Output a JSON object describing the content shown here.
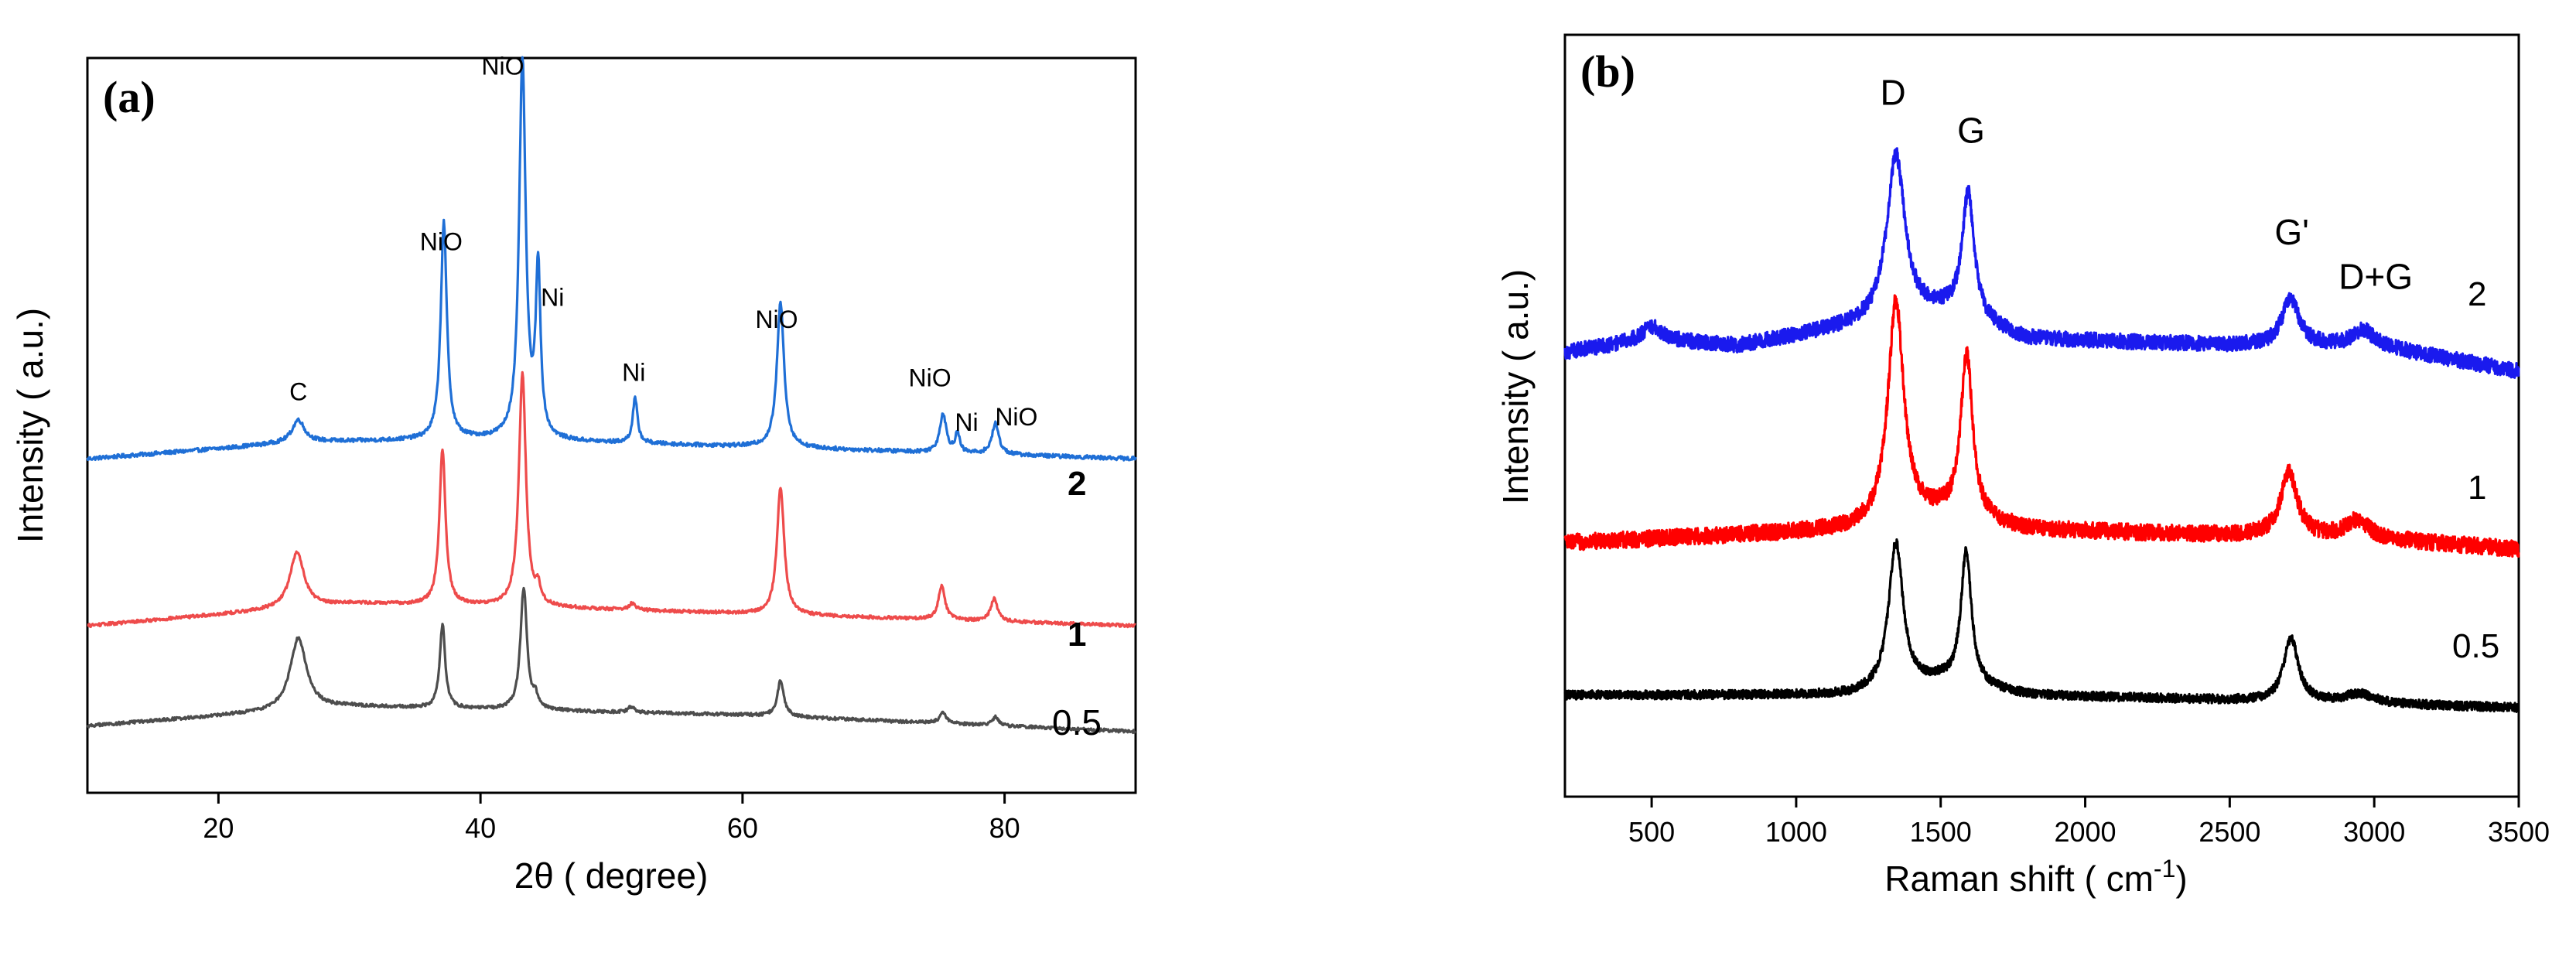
{
  "chart_data": [
    {
      "panel": "(a)",
      "type": "line",
      "xlabel": "2θ ( degree)",
      "ylabel": "Intensity ( a.u.)",
      "xlim": [
        10,
        90
      ],
      "xticks": [
        "20",
        "40",
        "60",
        "80"
      ],
      "xtick_values": [
        20,
        40,
        60,
        80
      ],
      "y_ticks_shown": false,
      "series": [
        {
          "name": "2",
          "label_bold": true,
          "color": "#1f6fd6",
          "offset": 0.6,
          "noise": 0.0035,
          "baseline": [
            [
              10,
              0.0
            ],
            [
              20,
              0.018
            ],
            [
              26,
              0.03
            ],
            [
              40,
              0.035
            ],
            [
              60,
              0.022
            ],
            [
              90,
              0.0
            ]
          ],
          "peaks": [
            [
              26.1,
              0.04,
              0.55
            ],
            [
              37.2,
              0.39,
              0.28
            ],
            [
              43.2,
              0.68,
              0.3
            ],
            [
              44.4,
              0.3,
              0.22
            ],
            [
              51.8,
              0.08,
              0.22
            ],
            [
              62.9,
              0.26,
              0.33
            ],
            [
              75.3,
              0.07,
              0.3
            ],
            [
              76.4,
              0.035,
              0.2
            ],
            [
              79.3,
              0.055,
              0.32
            ]
          ]
        },
        {
          "name": "1",
          "label_bold": true,
          "color": "#ee4b4b",
          "offset": 0.3,
          "noise": 0.0028,
          "baseline": [
            [
              10,
              0.0
            ],
            [
              20,
              0.02
            ],
            [
              30,
              0.04
            ],
            [
              40,
              0.036
            ],
            [
              60,
              0.022
            ],
            [
              90,
              0.0
            ]
          ],
          "peaks": [
            [
              26.0,
              0.1,
              0.65
            ],
            [
              37.1,
              0.28,
              0.28
            ],
            [
              43.2,
              0.42,
              0.32
            ],
            [
              44.4,
              0.03,
              0.2
            ],
            [
              51.6,
              0.012,
              0.3
            ],
            [
              62.9,
              0.23,
              0.33
            ],
            [
              75.2,
              0.06,
              0.3
            ],
            [
              79.2,
              0.04,
              0.32
            ]
          ]
        },
        {
          "name": "0.5",
          "label_bold": false,
          "color": "#4d4d4d",
          "offset": 0.12,
          "noise": 0.0028,
          "baseline": [
            [
              10,
              0.0
            ],
            [
              20,
              0.018
            ],
            [
              30,
              0.035
            ],
            [
              40,
              0.03
            ],
            [
              60,
              0.02
            ],
            [
              90,
              -0.01
            ]
          ],
          "peaks": [
            [
              26.1,
              0.13,
              0.75
            ],
            [
              37.1,
              0.15,
              0.25
            ],
            [
              43.3,
              0.22,
              0.3
            ],
            [
              44.2,
              0.02,
              0.2
            ],
            [
              51.5,
              0.01,
              0.3
            ],
            [
              62.9,
              0.065,
              0.3
            ],
            [
              75.3,
              0.02,
              0.3
            ],
            [
              79.3,
              0.015,
              0.3
            ]
          ]
        }
      ],
      "annotations": [
        {
          "text": "C",
          "x": 26.1,
          "y": 0.705
        },
        {
          "text": "NiO",
          "x": 37.0,
          "y": 0.975
        },
        {
          "text": "NiO",
          "x": 41.7,
          "y": 1.29
        },
        {
          "text": "Ni",
          "x": 45.5,
          "y": 0.875
        },
        {
          "text": "Ni",
          "x": 51.7,
          "y": 0.74
        },
        {
          "text": "NiO",
          "x": 62.6,
          "y": 0.835
        },
        {
          "text": "NiO",
          "x": 74.3,
          "y": 0.73
        },
        {
          "text": "Ni",
          "x": 77.1,
          "y": 0.65
        },
        {
          "text": "NiO",
          "x": 80.9,
          "y": 0.66
        }
      ]
    },
    {
      "panel": "(b)",
      "type": "line",
      "xlabel": "Raman shift ( cm",
      "xlabel_sup": "-1",
      "xlabel_close": ")",
      "ylabel": "Intensity ( a.u.)",
      "xlim": [
        200,
        3500
      ],
      "xticks": [
        "500",
        "1000",
        "1500",
        "2000",
        "2500",
        "3000",
        "3500"
      ],
      "xtick_values": [
        500,
        1000,
        1500,
        2000,
        2500,
        3000,
        3500
      ],
      "y_ticks_shown": false,
      "series": [
        {
          "name": "2",
          "color": "#1a1aee",
          "offset": 0.7,
          "noise": 0.012,
          "baseline": [
            [
              200,
              0.0
            ],
            [
              500,
              0.02
            ],
            [
              800,
              0.01
            ],
            [
              1200,
              0.04
            ],
            [
              1500,
              0.06
            ],
            [
              1800,
              0.02
            ],
            [
              2600,
              0.01
            ],
            [
              3000,
              0.01
            ],
            [
              3500,
              -0.03
            ]
          ],
          "peaks": [
            [
              1345,
              0.26,
              38
            ],
            [
              1595,
              0.2,
              26
            ],
            [
              2710,
              0.075,
              35
            ],
            [
              2960,
              0.025,
              40
            ],
            [
              500,
              0.02,
              40
            ]
          ]
        },
        {
          "name": "1",
          "color": "#ff0000",
          "offset": 0.4,
          "noise": 0.013,
          "baseline": [
            [
              200,
              0.0
            ],
            [
              1200,
              0.02
            ],
            [
              1500,
              0.04
            ],
            [
              1800,
              0.02
            ],
            [
              3000,
              0.005
            ],
            [
              3500,
              -0.01
            ]
          ],
          "peaks": [
            [
              1345,
              0.35,
              33
            ],
            [
              1590,
              0.26,
              25
            ],
            [
              2705,
              0.1,
              35
            ],
            [
              2940,
              0.028,
              50
            ]
          ]
        },
        {
          "name": "0.5",
          "color": "#000000",
          "offset": 0.16,
          "noise": 0.007,
          "baseline": [
            [
              200,
              0.0
            ],
            [
              1200,
              0.0
            ],
            [
              1500,
              0.02
            ],
            [
              1800,
              0.0
            ],
            [
              3500,
              -0.02
            ]
          ],
          "peaks": [
            [
              1345,
              0.23,
              30
            ],
            [
              1588,
              0.21,
              22
            ],
            [
              2712,
              0.1,
              30
            ],
            [
              2950,
              0.015,
              60
            ]
          ]
        }
      ],
      "annotations": [
        {
          "text": "D",
          "x": 1335,
          "y": 1.09
        },
        {
          "text": "G",
          "x": 1605,
          "y": 1.03
        },
        {
          "text": "G'",
          "x": 2715,
          "y": 0.87
        },
        {
          "text": "D+G",
          "x": 3005,
          "y": 0.8
        }
      ]
    }
  ]
}
